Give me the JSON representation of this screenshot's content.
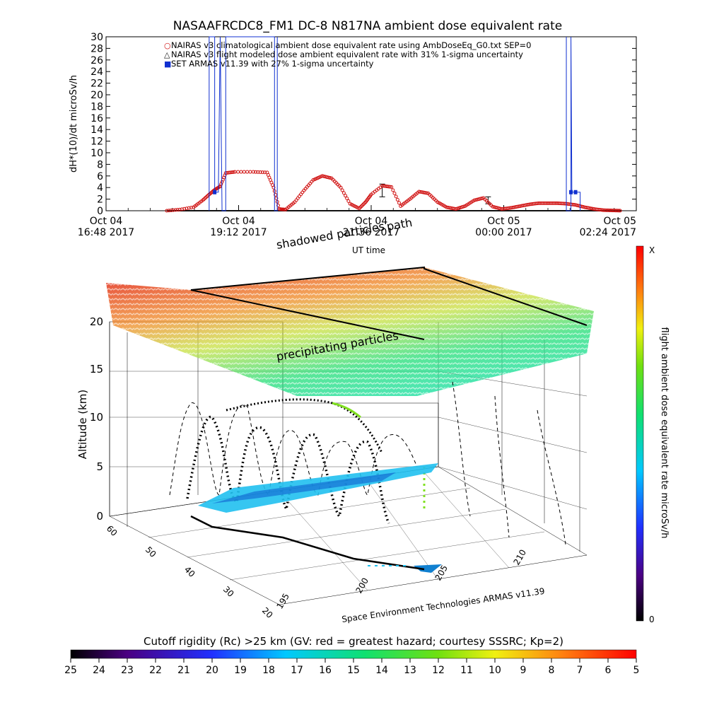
{
  "chart_data": [
    {
      "type": "line",
      "title": "NASAAFRCDC8_FM1 DC-8   N817NA ambient dose equivalent rate",
      "ylabel": "dH*(10)/dt microSv/h",
      "ylim": [
        0,
        30
      ],
      "yticks": [
        0,
        2,
        4,
        6,
        8,
        10,
        12,
        14,
        16,
        18,
        20,
        22,
        24,
        26,
        28,
        30
      ],
      "xticks": [
        {
          "day": "Oct 04",
          "time": "16:48 2017",
          "t": 0
        },
        {
          "day": "Oct 04",
          "time": "19:12 2017",
          "t": 144
        },
        {
          "day": "Oct 04",
          "time": "21:36 2017",
          "t": 288
        },
        {
          "day": "Oct 05",
          "time": "00:00 2017",
          "t": 432
        },
        {
          "day": "Oct 05",
          "time": "02:24 2017",
          "t": 576
        }
      ],
      "xlim": [
        0,
        576
      ],
      "legend": [
        {
          "symbol": "○",
          "color": "#d01010",
          "text": "NAIRAS v3 climatological ambient dose equivalent rate using AmbDoseEq_G0.txt SEP=0"
        },
        {
          "symbol": "△",
          "color": "#111111",
          "text": "NAIRAS v3 flight modeled dose ambient equivalent rate with 31% 1-sigma uncertainty"
        },
        {
          "symbol": "■",
          "color": "#1030d0",
          "text": "SET ARMAS v11.39 with 27% 1-sigma uncertainty"
        }
      ],
      "series": [
        {
          "name": "NAIRAS v3 climatological ambient dose equivalent rate using AmbDoseEq_G0.txt SEP=0",
          "x": [
            66,
            80,
            95,
            105,
            112,
            118,
            124,
            130,
            140,
            160,
            175,
            182,
            188,
            195,
            205,
            215,
            225,
            235,
            245,
            255,
            265,
            275,
            282,
            288,
            300,
            310,
            320,
            330,
            340,
            350,
            360,
            370,
            380,
            390,
            400,
            410,
            420,
            430,
            440,
            450,
            460,
            470,
            480,
            490,
            500,
            510,
            520,
            530,
            540,
            550,
            560
          ],
          "y": [
            0,
            0.2,
            0.6,
            1.8,
            2.8,
            3.6,
            4.2,
            6.5,
            6.7,
            6.7,
            6.6,
            4.0,
            0.3,
            0.2,
            1.5,
            3.5,
            5.3,
            6.0,
            5.6,
            4.0,
            1.2,
            0.4,
            1.5,
            2.8,
            4.3,
            4.1,
            0.8,
            2.0,
            3.3,
            3.0,
            1.5,
            0.6,
            0.3,
            0.8,
            1.8,
            2.2,
            0.7,
            0.3,
            0.5,
            0.8,
            1.1,
            1.3,
            1.3,
            1.3,
            1.2,
            1.0,
            0.6,
            0.3,
            0.1,
            0.05,
            0
          ]
        },
        {
          "name": "NAIRAS v3 flight modeled dose ambient equivalent rate with 31% 1-sigma uncertainty",
          "x": [
            66,
            100,
            140,
            200,
            250,
            290,
            300,
            330,
            380,
            415,
            430,
            470,
            520,
            560
          ],
          "y": [
            0,
            0,
            0,
            0,
            0,
            0,
            3.5,
            0,
            0,
            1.8,
            0,
            0,
            0,
            0
          ],
          "errorbars": [
            {
              "x": 300,
              "y": 3.5,
              "err": 1.1
            },
            {
              "x": 415,
              "y": 1.8,
              "err": 0.6
            }
          ]
        },
        {
          "name": "SET ARMAS v11.39 with 27% 1-sigma uncertainty",
          "x": [
            112,
            118,
            124,
            130,
            183,
            185,
            500,
            505,
            510,
            515
          ],
          "y": [
            30,
            3.2,
            30,
            0,
            0,
            30,
            30,
            3.2,
            3.2,
            0
          ]
        }
      ]
    },
    {
      "type": "scatter",
      "title": "",
      "zlabel": "Altitude (km)",
      "zticks": [
        0,
        5,
        10,
        15,
        20
      ],
      "lat_ticks": [
        60,
        50,
        40,
        30,
        20
      ],
      "lon_ticks": [
        195,
        200,
        205,
        210
      ],
      "annotations": [
        "shadowed particles",
        "path",
        "UT time",
        "precipitating particles"
      ],
      "footer": "Space Environment Technologies ARMAS v11.39",
      "colorbar": {
        "label": "flight ambient dose equivalent rate microSv/h",
        "max_label": "X",
        "min_label": "0"
      }
    },
    {
      "type": "heatmap",
      "title": "Cutoff rigidity (Rc) >25 km (GV: red = greatest hazard; courtesy SSSRC; Kp=2)",
      "ticks": [
        25,
        24,
        23,
        22,
        21,
        20,
        19,
        18,
        17,
        16,
        15,
        14,
        13,
        12,
        11,
        10,
        9,
        8,
        7,
        6,
        5
      ]
    }
  ],
  "colors": {
    "nairas": "#d01010",
    "armas": "#1030d0",
    "model": "#111111",
    "axes": "#000000"
  }
}
